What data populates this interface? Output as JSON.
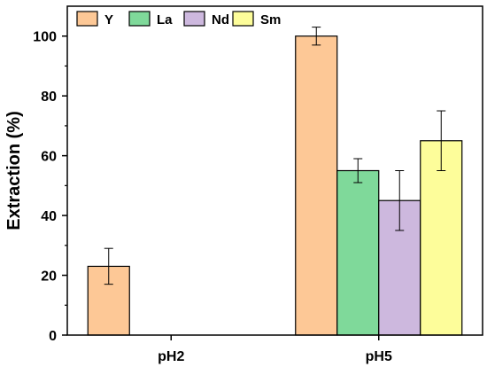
{
  "chart_data": {
    "type": "bar",
    "ylabel": "Extraction (%)",
    "xlabel": "",
    "categories": [
      "pH2",
      "pH5"
    ],
    "ylim": [
      0,
      110
    ],
    "yticks": [
      0,
      20,
      40,
      60,
      80,
      100
    ],
    "legend_position": "top",
    "series": [
      {
        "name": "Y",
        "color": "#FDC896",
        "values": [
          23,
          100
        ],
        "errors": [
          6,
          3
        ]
      },
      {
        "name": "La",
        "color": "#7FD99A",
        "values": [
          null,
          55
        ],
        "errors": [
          null,
          4
        ]
      },
      {
        "name": "Nd",
        "color": "#CDB8DE",
        "values": [
          null,
          45
        ],
        "errors": [
          null,
          10
        ]
      },
      {
        "name": "Sm",
        "color": "#FDFD9A",
        "values": [
          null,
          65
        ],
        "errors": [
          null,
          10
        ]
      }
    ]
  }
}
